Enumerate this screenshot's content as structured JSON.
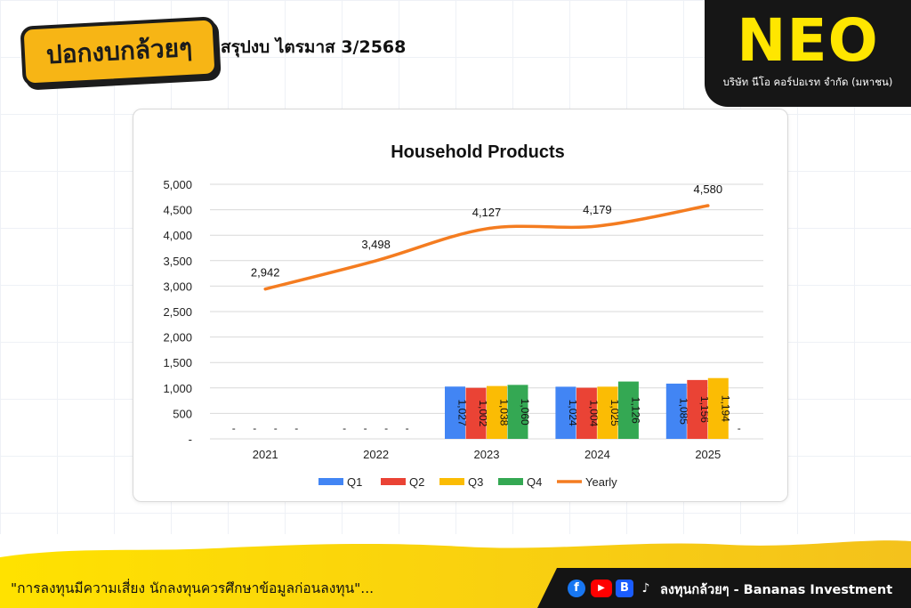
{
  "header": {
    "brand_logo_text": "ปอกงบกล้วยๆ",
    "title": "สรุปงบ ไตรมาส 3/2568"
  },
  "corner": {
    "logo": "NEO",
    "company_name": "บริษัท นีโอ คอร์ปอเรท จำกัด (มหาชน)"
  },
  "footer": {
    "disclaimer": "\"การลงทุนมีความเสี่ยง นักลงทุนควรศึกษาข้อมูลก่อนลงทุน\"...",
    "channel": "ลงทุนกล้วยๆ - Bananas Investment",
    "icons": [
      "facebook-icon",
      "youtube-icon",
      "blockdit-icon",
      "tiktok-icon"
    ]
  },
  "colors": {
    "brand_yellow": "#f7b515",
    "neo_yellow": "#ffe600",
    "dark": "#161616",
    "q1": "#4285f4",
    "q2": "#ea4335",
    "q3": "#fbbc04",
    "q4": "#34a853",
    "yearly": "#f47c20"
  },
  "chart_data": {
    "type": "bar",
    "title": "Household Products",
    "categories": [
      "2021",
      "2022",
      "2023",
      "2024",
      "2025"
    ],
    "y_ticks": [
      "5,000",
      "4,500",
      "4,000",
      "3,500",
      "3,000",
      "2,500",
      "2,000",
      "1,500",
      "1,000",
      "500",
      "-"
    ],
    "ylim": [
      0,
      5000
    ],
    "grid": true,
    "legend_position": "bottom",
    "series": [
      {
        "name": "Q1",
        "kind": "bar",
        "values": [
          null,
          null,
          1027,
          1024,
          1085
        ],
        "labels": [
          "-",
          "-",
          "1,027",
          "1,024",
          "1,085"
        ]
      },
      {
        "name": "Q2",
        "kind": "bar",
        "values": [
          null,
          null,
          1002,
          1004,
          1156
        ],
        "labels": [
          "-",
          "-",
          "1,002",
          "1,004",
          "1,156"
        ]
      },
      {
        "name": "Q3",
        "kind": "bar",
        "values": [
          null,
          null,
          1038,
          1025,
          1194
        ],
        "labels": [
          "-",
          "-",
          "1,038",
          "1,025",
          "1,194"
        ]
      },
      {
        "name": "Q4",
        "kind": "bar",
        "values": [
          null,
          null,
          1060,
          1126,
          null
        ],
        "labels": [
          "-",
          "-",
          "1,060",
          "1,126",
          "-"
        ]
      },
      {
        "name": "Yearly",
        "kind": "line",
        "values": [
          2942,
          3498,
          4127,
          4179,
          4580
        ],
        "labels": [
          "2,942",
          "3,498",
          "4,127",
          "4,179",
          "4,580"
        ]
      }
    ]
  }
}
